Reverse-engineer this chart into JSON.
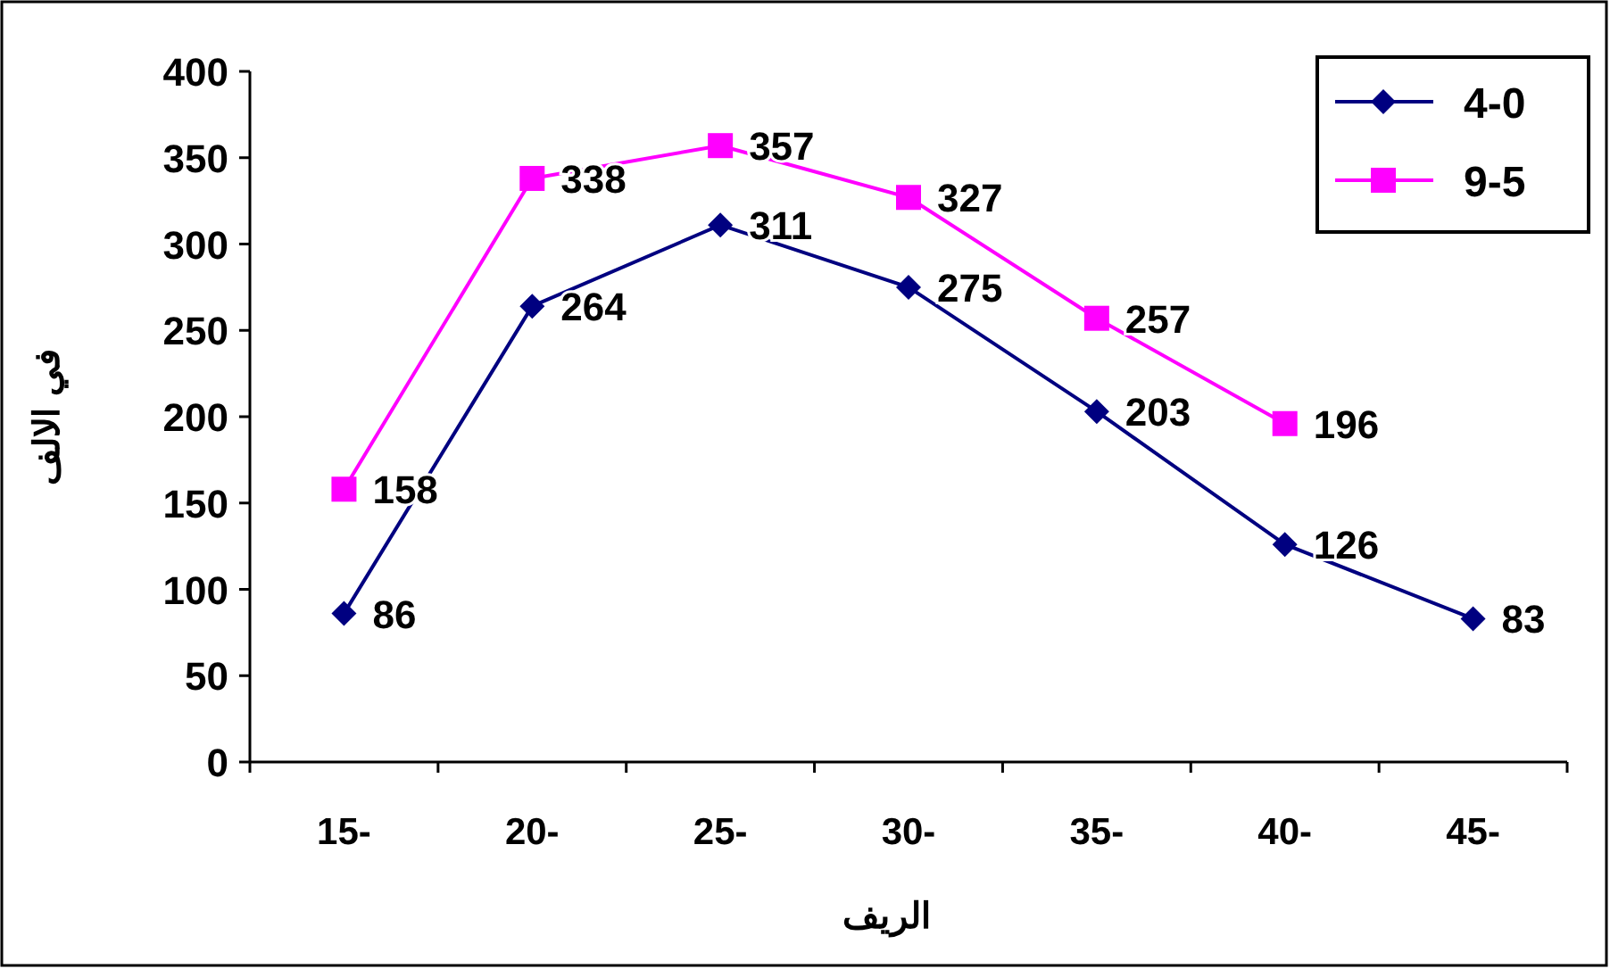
{
  "chart_data": {
    "type": "line",
    "xlabel": "الريف",
    "ylabel": "في الالف",
    "categories": [
      "15-",
      "20-",
      "25-",
      "30-",
      "35-",
      "40-",
      "45-"
    ],
    "series": [
      {
        "name": "4-0",
        "color": "#000080",
        "marker": "diamond",
        "values": [
          86,
          264,
          311,
          275,
          203,
          126,
          83
        ]
      },
      {
        "name": "9-5",
        "color": "#ff00ff",
        "marker": "square",
        "values": [
          158,
          338,
          357,
          327,
          257,
          196,
          null
        ]
      }
    ],
    "ylim": [
      0,
      400
    ],
    "yticks": [
      0,
      50,
      100,
      150,
      200,
      250,
      300,
      350,
      400
    ],
    "data_labels": true,
    "legend": "top right",
    "grid": false
  }
}
